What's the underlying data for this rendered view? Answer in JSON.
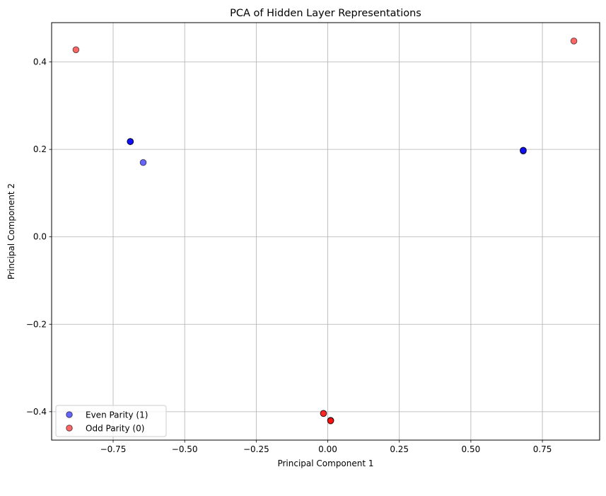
{
  "chart_data": {
    "type": "scatter",
    "title": "PCA of Hidden Layer Representations",
    "xlabel": "Principal Component 1",
    "ylabel": "Principal Component 2",
    "xlim": [
      -0.965,
      0.95
    ],
    "ylim": [
      -0.465,
      0.49
    ],
    "xticks": [
      -0.75,
      -0.5,
      -0.25,
      0.0,
      0.25,
      0.5,
      0.75
    ],
    "xtick_labels": [
      "−0.75",
      "−0.50",
      "−0.25",
      "0.00",
      "0.25",
      "0.50",
      "0.75"
    ],
    "yticks": [
      -0.4,
      -0.2,
      0.0,
      0.2,
      0.4
    ],
    "ytick_labels": [
      "−0.4",
      "−0.2",
      "0.0",
      "0.2",
      "0.4"
    ],
    "grid": true,
    "legend_position": "lower-left",
    "series": [
      {
        "name": "Even Parity (1)",
        "color": "#0000ff",
        "alpha": 0.6,
        "points": [
          {
            "x": -0.69,
            "y": 0.218
          },
          {
            "x": -0.69,
            "y": 0.218
          },
          {
            "x": -0.69,
            "y": 0.218
          },
          {
            "x": -0.645,
            "y": 0.17
          },
          {
            "x": 0.683,
            "y": 0.198
          },
          {
            "x": 0.683,
            "y": 0.196
          },
          {
            "x": 0.683,
            "y": 0.198
          }
        ]
      },
      {
        "name": "Odd Parity (0)",
        "color": "#ff0000",
        "alpha": 0.6,
        "points": [
          {
            "x": -0.88,
            "y": 0.428
          },
          {
            "x": 0.86,
            "y": 0.448
          },
          {
            "x": -0.015,
            "y": -0.404
          },
          {
            "x": -0.015,
            "y": -0.404
          },
          {
            "x": 0.01,
            "y": -0.42
          },
          {
            "x": 0.01,
            "y": -0.42
          },
          {
            "x": 0.01,
            "y": -0.421
          }
        ]
      }
    ]
  }
}
